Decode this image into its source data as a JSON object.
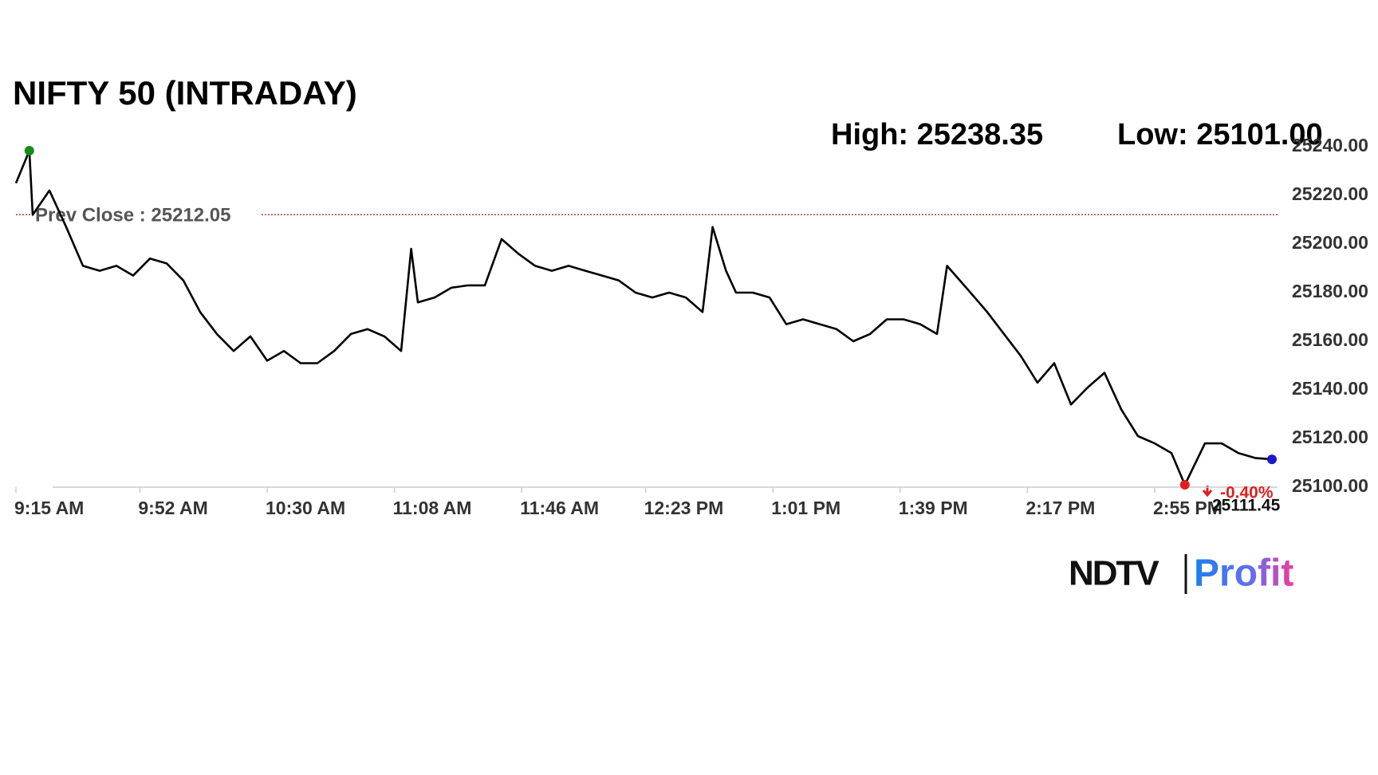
{
  "chart_data": {
    "type": "line",
    "title": "NIFTY 50 (INTRADAY)",
    "high_label": "High: 25238.35",
    "low_label": "Low: 25101.00",
    "color": "#000000",
    "prev_close": {
      "label": "Prev Close : 25212.05",
      "value": 25212.05,
      "color": "#c0392b"
    },
    "last_label": "25111.45",
    "change_label": "-0.40%",
    "high_color": "#1a8a1a",
    "low_color": "#e02020",
    "last_color": "#1a1acc",
    "x": [
      0,
      4,
      5,
      10,
      15,
      20,
      25,
      30,
      35,
      40,
      45,
      50,
      55,
      60,
      65,
      70,
      75,
      80,
      85,
      90,
      95,
      100,
      105,
      110,
      115,
      118,
      120,
      125,
      130,
      135,
      140,
      145,
      150,
      155,
      160,
      165,
      170,
      175,
      180,
      185,
      190,
      195,
      200,
      205,
      208,
      212,
      215,
      220,
      225,
      230,
      235,
      240,
      245,
      250,
      255,
      260,
      265,
      270,
      275,
      278,
      285,
      290,
      295,
      300,
      305,
      310,
      315,
      320,
      325,
      330,
      335,
      340,
      345,
      349,
      355,
      360,
      365,
      370,
      375
    ],
    "values": [
      25225,
      25238.35,
      25212,
      25222,
      25207,
      25191,
      25189,
      25191,
      25187,
      25194,
      25192,
      25185,
      25172,
      25163,
      25156,
      25162,
      25152,
      25156,
      25151,
      25151,
      25156,
      25163,
      25165,
      25162,
      25156,
      25198,
      25176,
      25178,
      25182,
      25183,
      25183,
      25202,
      25196,
      25191,
      25189,
      25191,
      25189,
      25187,
      25185,
      25180,
      25178,
      25180,
      25178,
      25172,
      25207,
      25189,
      25180,
      25180,
      25178,
      25167,
      25169,
      25167,
      25165,
      25160,
      25163,
      25169,
      25169,
      25167,
      25163,
      25191,
      25180,
      25172,
      25163,
      25154,
      25143,
      25151,
      25134,
      25141,
      25147,
      25132,
      25121,
      25118,
      25114,
      25101,
      25118,
      25118,
      25114,
      25112,
      25111.45
    ],
    "xlim": [
      0,
      375
    ],
    "xticks": [
      {
        "value": 0,
        "label": "9:15 AM"
      },
      {
        "value": 37,
        "label": "9:52 AM"
      },
      {
        "value": 75,
        "label": "10:30 AM"
      },
      {
        "value": 113,
        "label": "11:08 AM"
      },
      {
        "value": 151,
        "label": "11:46 AM"
      },
      {
        "value": 188,
        "label": "12:23 PM"
      },
      {
        "value": 226,
        "label": "1:01 PM"
      },
      {
        "value": 264,
        "label": "1:39 PM"
      },
      {
        "value": 302,
        "label": "2:17 PM"
      },
      {
        "value": 340,
        "label": "2:55 PM"
      }
    ],
    "ylim": [
      25100,
      25240
    ],
    "yticks": [
      {
        "value": 25100,
        "label": "25100.00"
      },
      {
        "value": 25120,
        "label": "25120.00"
      },
      {
        "value": 25140,
        "label": "25140.00"
      },
      {
        "value": 25160,
        "label": "25160.00"
      },
      {
        "value": 25180,
        "label": "25180.00"
      },
      {
        "value": 25200,
        "label": "25200.00"
      },
      {
        "value": 25220,
        "label": "25220.00"
      },
      {
        "value": 25240,
        "label": "25240.00"
      }
    ]
  },
  "logo": {
    "left": "NDTV",
    "right": "Profit"
  }
}
